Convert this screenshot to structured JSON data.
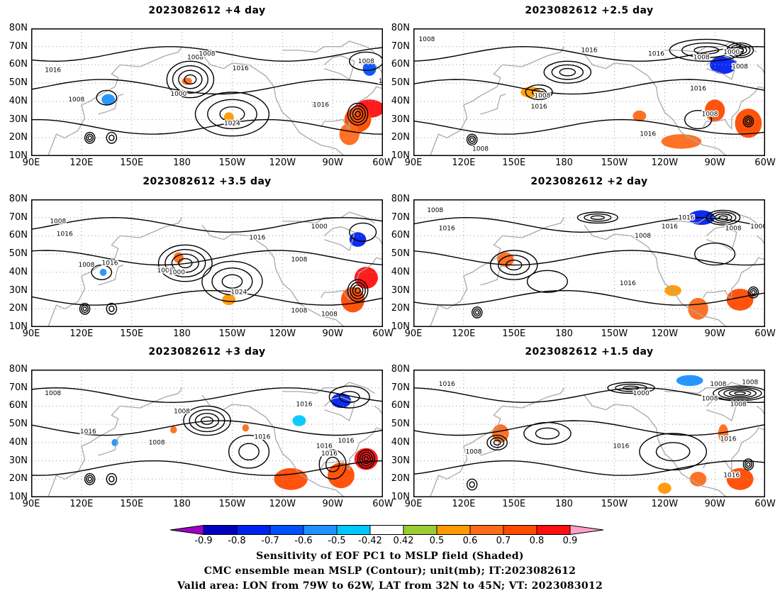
{
  "panels": [
    {
      "title": "2023082612 +4 day",
      "contour_labels": [
        "1016",
        "1008",
        "1008",
        "1016",
        "1008",
        "1000",
        "1016",
        "1024",
        "1008",
        "1016",
        "101"
      ],
      "shading": [
        {
          "lon": -68,
          "lat": 36,
          "rx": 9,
          "ry": 5,
          "v": 0.85
        },
        {
          "lon": -75,
          "lat": 30,
          "rx": 8,
          "ry": 7,
          "v": 0.7
        },
        {
          "lon": -80,
          "lat": 22,
          "rx": 6,
          "ry": 6,
          "v": 0.6
        },
        {
          "lon": -68,
          "lat": 58,
          "rx": 4,
          "ry": 4,
          "v": -0.7
        },
        {
          "lon": 136,
          "lat": 41,
          "rx": 4,
          "ry": 3,
          "v": -0.6
        },
        {
          "lon": -177,
          "lat": 51,
          "rx": 3,
          "ry": 2,
          "v": 0.6
        },
        {
          "lon": -152,
          "lat": 31,
          "rx": 3,
          "ry": 3,
          "v": 0.5
        }
      ]
    },
    {
      "title": "2023082612 +2.5 day",
      "contour_labels": [
        "1008",
        "1016",
        "1016",
        "1008",
        "1000",
        "1008",
        "1008",
        "1016",
        "1016",
        "1008",
        "1016",
        "1008"
      ],
      "shading": [
        {
          "lon": -85,
          "lat": 60,
          "rx": 8,
          "ry": 5,
          "v": -0.75
        },
        {
          "lon": -90,
          "lat": 35,
          "rx": 6,
          "ry": 6,
          "v": 0.7
        },
        {
          "lon": -70,
          "lat": 28,
          "rx": 8,
          "ry": 8,
          "v": 0.7
        },
        {
          "lon": -110,
          "lat": 18,
          "rx": 12,
          "ry": 4,
          "v": 0.65
        },
        {
          "lon": -135,
          "lat": 32,
          "rx": 4,
          "ry": 3,
          "v": 0.6
        },
        {
          "lon": 160,
          "lat": 45,
          "rx": 6,
          "ry": 3,
          "v": 0.5
        }
      ]
    },
    {
      "title": "2023082612 +3.5 day",
      "contour_labels": [
        "1008",
        "1016",
        "1016",
        "1008",
        "1000",
        "1008",
        "1016",
        "1024",
        "1008",
        "1000",
        "1016",
        "1008",
        "1008"
      ],
      "shading": [
        {
          "lon": -70,
          "lat": 37,
          "rx": 7,
          "ry": 6,
          "v": 0.85
        },
        {
          "lon": -78,
          "lat": 25,
          "rx": 7,
          "ry": 7,
          "v": 0.7
        },
        {
          "lon": -75,
          "lat": 58,
          "rx": 5,
          "ry": 4,
          "v": -0.75
        },
        {
          "lon": 178,
          "lat": 48,
          "rx": 3,
          "ry": 3,
          "v": 0.6
        },
        {
          "lon": -152,
          "lat": 25,
          "rx": 4,
          "ry": 3,
          "v": 0.5
        },
        {
          "lon": 133,
          "lat": 40,
          "rx": 2,
          "ry": 2,
          "v": -0.6
        }
      ]
    },
    {
      "title": "2023082612 +2 day",
      "contour_labels": [
        "1008",
        "1016",
        "1016",
        "1008",
        "1000",
        "1016",
        "1008",
        "1016",
        "1016"
      ],
      "shading": [
        {
          "lon": -98,
          "lat": 70,
          "rx": 8,
          "ry": 4,
          "v": -0.75
        },
        {
          "lon": 145,
          "lat": 47,
          "rx": 5,
          "ry": 4,
          "v": 0.65
        },
        {
          "lon": -75,
          "lat": 25,
          "rx": 8,
          "ry": 6,
          "v": 0.7
        },
        {
          "lon": -100,
          "lat": 20,
          "rx": 6,
          "ry": 6,
          "v": 0.6
        },
        {
          "lon": -115,
          "lat": 30,
          "rx": 5,
          "ry": 3,
          "v": 0.5
        }
      ]
    },
    {
      "title": "2023082612 +3 day",
      "contour_labels": [
        "1008",
        "1008",
        "1016",
        "1008",
        "1016",
        "1016",
        "1016",
        "1016",
        "1016"
      ],
      "shading": [
        {
          "lon": -70,
          "lat": 31,
          "rx": 7,
          "ry": 6,
          "v": 0.85
        },
        {
          "lon": -85,
          "lat": 22,
          "rx": 8,
          "ry": 7,
          "v": 0.7
        },
        {
          "lon": -115,
          "lat": 20,
          "rx": 10,
          "ry": 6,
          "v": 0.7
        },
        {
          "lon": -85,
          "lat": 63,
          "rx": 6,
          "ry": 4,
          "v": -0.75
        },
        {
          "lon": -110,
          "lat": 52,
          "rx": 4,
          "ry": 3,
          "v": -0.5
        },
        {
          "lon": 175,
          "lat": 47,
          "rx": 2,
          "ry": 2,
          "v": 0.6
        },
        {
          "lon": -142,
          "lat": 48,
          "rx": 2,
          "ry": 2,
          "v": 0.6
        },
        {
          "lon": 140,
          "lat": 40,
          "rx": 2,
          "ry": 2,
          "v": -0.6
        }
      ]
    },
    {
      "title": "2023082612 +1.5 day",
      "contour_labels": [
        "1016",
        "1000",
        "1008",
        "1008",
        "1008",
        "1000",
        "1016",
        "1008",
        "1016",
        "1016",
        "1016",
        "1008"
      ],
      "shading": [
        {
          "lon": -105,
          "lat": 74,
          "rx": 8,
          "ry": 3,
          "v": -0.6
        },
        {
          "lon": 142,
          "lat": 45,
          "rx": 5,
          "ry": 5,
          "v": 0.65
        },
        {
          "lon": -75,
          "lat": 20,
          "rx": 8,
          "ry": 6,
          "v": 0.7
        },
        {
          "lon": -100,
          "lat": 20,
          "rx": 5,
          "ry": 4,
          "v": 0.6
        },
        {
          "lon": -85,
          "lat": 45,
          "rx": 3,
          "ry": 5,
          "v": 0.6
        },
        {
          "lon": -120,
          "lat": 15,
          "rx": 4,
          "ry": 3,
          "v": 0.5
        }
      ]
    }
  ],
  "lat_ticks": [
    "80N",
    "70N",
    "60N",
    "50N",
    "40N",
    "30N",
    "20N",
    "10N"
  ],
  "lon_ticks": [
    "90E",
    "120E",
    "150E",
    "180",
    "150W",
    "120W",
    "90W",
    "60W"
  ],
  "colorbar": {
    "labels": [
      "-0.9",
      "-0.8",
      "-0.7",
      "-0.6",
      "-0.5",
      "-0.42",
      "0.42",
      "0.5",
      "0.6",
      "0.7",
      "0.8",
      "0.9"
    ],
    "colors": [
      "#a000c8",
      "#0000c0",
      "#0020f0",
      "#0050ff",
      "#1e90ff",
      "#00c8ff",
      "#ffffff",
      "#9acd32",
      "#ff9900",
      "#ff6a1a",
      "#ff4a00",
      "#ff1010",
      "#ffa0c8"
    ]
  },
  "caption": [
    "Sensitivity of EOF PC1 to MSLP field (Shaded)",
    "CMC ensemble mean MSLP (Contour); unit(mb); IT:2023082612",
    "Valid area: LON from 79W to 62W, LAT from 32N to 45N; VT: 2023083012"
  ]
}
